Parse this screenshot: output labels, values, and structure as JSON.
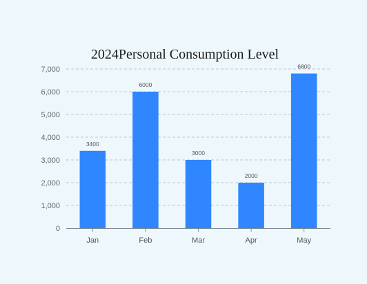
{
  "chart_data": {
    "type": "bar",
    "title": "2024Personal Consumption Level",
    "xlabel": "",
    "ylabel": "",
    "categories": [
      "Jan",
      "Feb",
      "Mar",
      "Apr",
      "May"
    ],
    "values": [
      3400,
      6000,
      3000,
      2000,
      6800
    ],
    "data_labels": [
      "3400",
      "6000",
      "3000",
      "2000",
      "6800"
    ],
    "ylim": [
      0,
      7000
    ],
    "yticks": [
      0,
      1000,
      2000,
      3000,
      4000,
      5000,
      6000,
      7000
    ],
    "ytick_labels": [
      "0",
      "1,000",
      "2,000",
      "3,000",
      "4,000",
      "5,000",
      "6,000",
      "7,000"
    ],
    "grid": true,
    "legend": "none",
    "colors": {
      "bar": "#2f86ff",
      "grid": "#b9c6cf",
      "axis": "#7a8a94",
      "background": "#eef8fc"
    }
  }
}
